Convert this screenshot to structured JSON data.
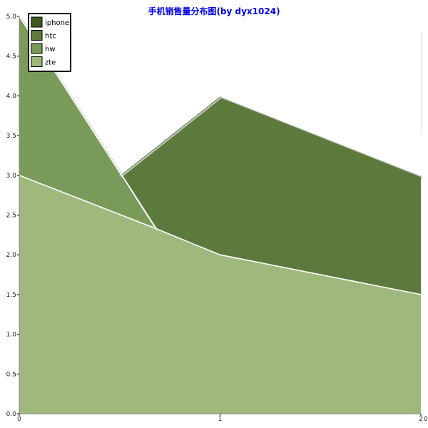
{
  "chart_data": {
    "type": "area",
    "title": "手机销售量分布图(by dyx1024)",
    "title_color": "#0000ee",
    "x": [
      0,
      1,
      2
    ],
    "x_tick_labels": [
      "0",
      "1",
      "2"
    ],
    "x_end_labels": [
      "0"
    ],
    "y_tick_labels": [
      "0.0",
      "0.5",
      "1.0",
      "1.5",
      "2.0",
      "2.5",
      "3.0",
      "3.5",
      "4.0",
      "4.5",
      "5.0"
    ],
    "ylim": [
      0,
      5
    ],
    "xlim": [
      0,
      2
    ],
    "series": [
      {
        "name": "iphone",
        "values": [
          null,
          null,
          null
        ],
        "color": "#3f5a25"
      },
      {
        "name": "htc",
        "values": [
          3.0,
          4.0,
          3.0
        ],
        "color": "#5c7a3c"
      },
      {
        "name": "hw",
        "values": [
          5.0,
          2.0,
          1.0
        ],
        "color": "#7a9a5a"
      },
      {
        "name": "zte",
        "values": [
          3.0,
          2.0,
          1.5
        ],
        "color": "#9eb97b"
      }
    ],
    "legend_position": "top-left",
    "grid": false
  }
}
